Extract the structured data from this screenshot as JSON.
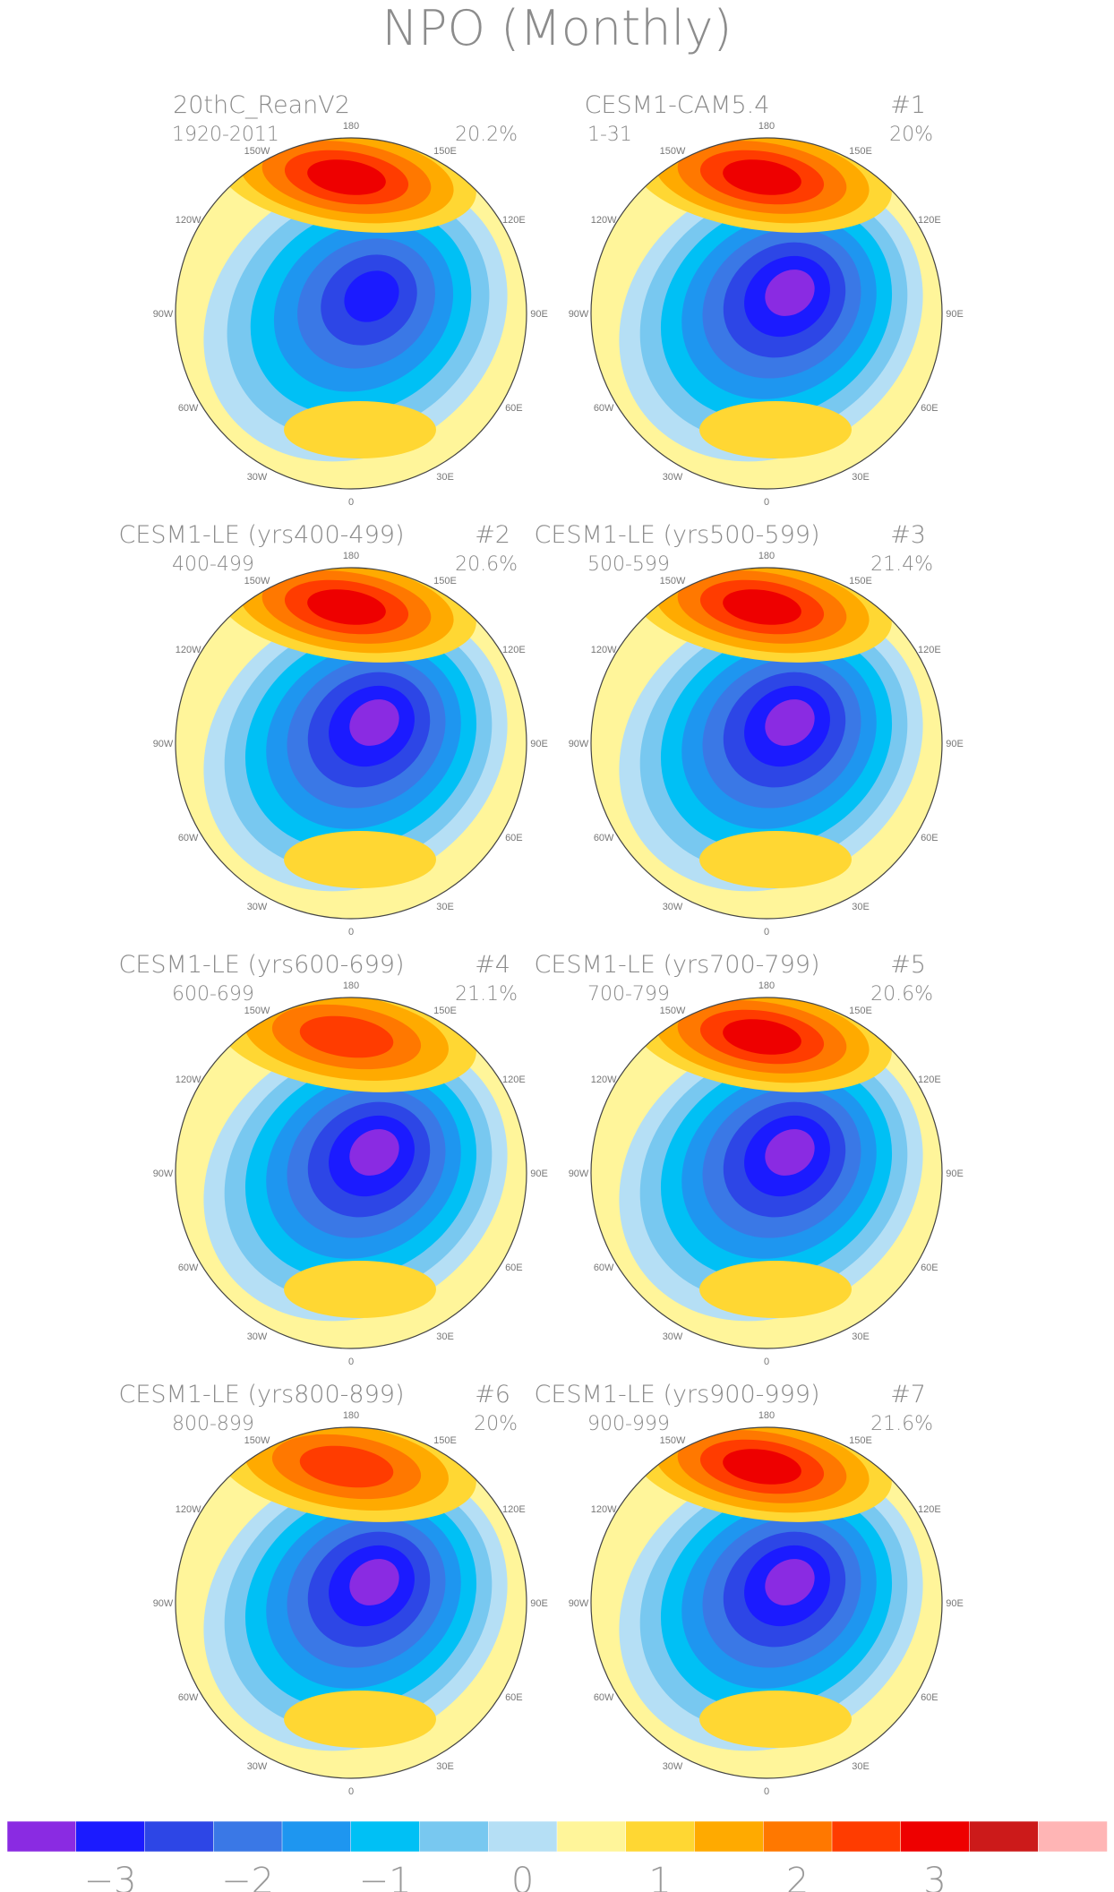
{
  "title": "NPO (Monthly)",
  "panels": [
    {
      "title": "20thC_ReanV2",
      "tag": "",
      "years": "1920-2011",
      "pct": "20.2%",
      "neg": [
        0.0,
        0.0
      ],
      "pos": [
        0.0,
        0.0
      ],
      "negMax": 2.9,
      "posMax": 2.6
    },
    {
      "title": "CESM1-CAM5.4",
      "tag": "#1",
      "years": "1-31",
      "pct": "20%",
      "neg": [
        0.0,
        0.0
      ],
      "pos": [
        0.0,
        0.0
      ],
      "negMax": 3.3,
      "posMax": 2.5
    },
    {
      "title": "CESM1-LE (yrs400-499)",
      "tag": "#2",
      "years": "400-499",
      "pct": "20.6%",
      "neg": [
        0.0,
        0.0
      ],
      "pos": [
        0.0,
        0.0
      ],
      "negMax": 3.4,
      "posMax": 2.6
    },
    {
      "title": "CESM1-LE (yrs500-599)",
      "tag": "#3",
      "years": "500-599",
      "pct": "21.4%",
      "neg": [
        0.0,
        0.0
      ],
      "pos": [
        0.0,
        0.0
      ],
      "negMax": 3.4,
      "posMax": 2.5
    },
    {
      "title": "CESM1-LE (yrs600-699)",
      "tag": "#4",
      "years": "600-699",
      "pct": "21.1%",
      "neg": [
        0.0,
        0.0
      ],
      "pos": [
        0.0,
        0.0
      ],
      "negMax": 3.4,
      "posMax": 2.2
    },
    {
      "title": "CESM1-LE (yrs700-799)",
      "tag": "#5",
      "years": "700-799",
      "pct": "20.6%",
      "neg": [
        0.0,
        0.0
      ],
      "pos": [
        0.0,
        0.0
      ],
      "negMax": 3.4,
      "posMax": 2.5
    },
    {
      "title": "CESM1-LE (yrs800-899)",
      "tag": "#6",
      "years": "800-899",
      "pct": "20%",
      "neg": [
        0.0,
        0.0
      ],
      "pos": [
        0.0,
        0.0
      ],
      "negMax": 3.4,
      "posMax": 2.2
    },
    {
      "title": "CESM1-LE (yrs900-999)",
      "tag": "#7",
      "years": "900-999",
      "pct": "21.6%",
      "neg": [
        0.0,
        0.0
      ],
      "pos": [
        0.0,
        0.0
      ],
      "negMax": 3.3,
      "posMax": 2.7
    }
  ],
  "lon_labels": [
    "180",
    "150E",
    "120E",
    "90E",
    "60E",
    "30E",
    "0",
    "30W",
    "60W",
    "90W",
    "120W",
    "150W"
  ],
  "colorbar": {
    "colors": [
      "#8a2be2",
      "#1b1bff",
      "#2d46e6",
      "#3a78e6",
      "#1e96f0",
      "#00c0f5",
      "#78c8f0",
      "#b5dff5",
      "#fff59a",
      "#ffd733",
      "#ffaa00",
      "#ff7800",
      "#ff3c00",
      "#ee0000",
      "#cc1a1a",
      "#ffb5b5"
    ],
    "ticks": [
      "−3",
      "−2",
      "−1",
      "0",
      "1",
      "2",
      "3"
    ],
    "tick_values": [
      -3,
      -2,
      -1,
      0,
      1,
      2,
      3
    ]
  }
}
